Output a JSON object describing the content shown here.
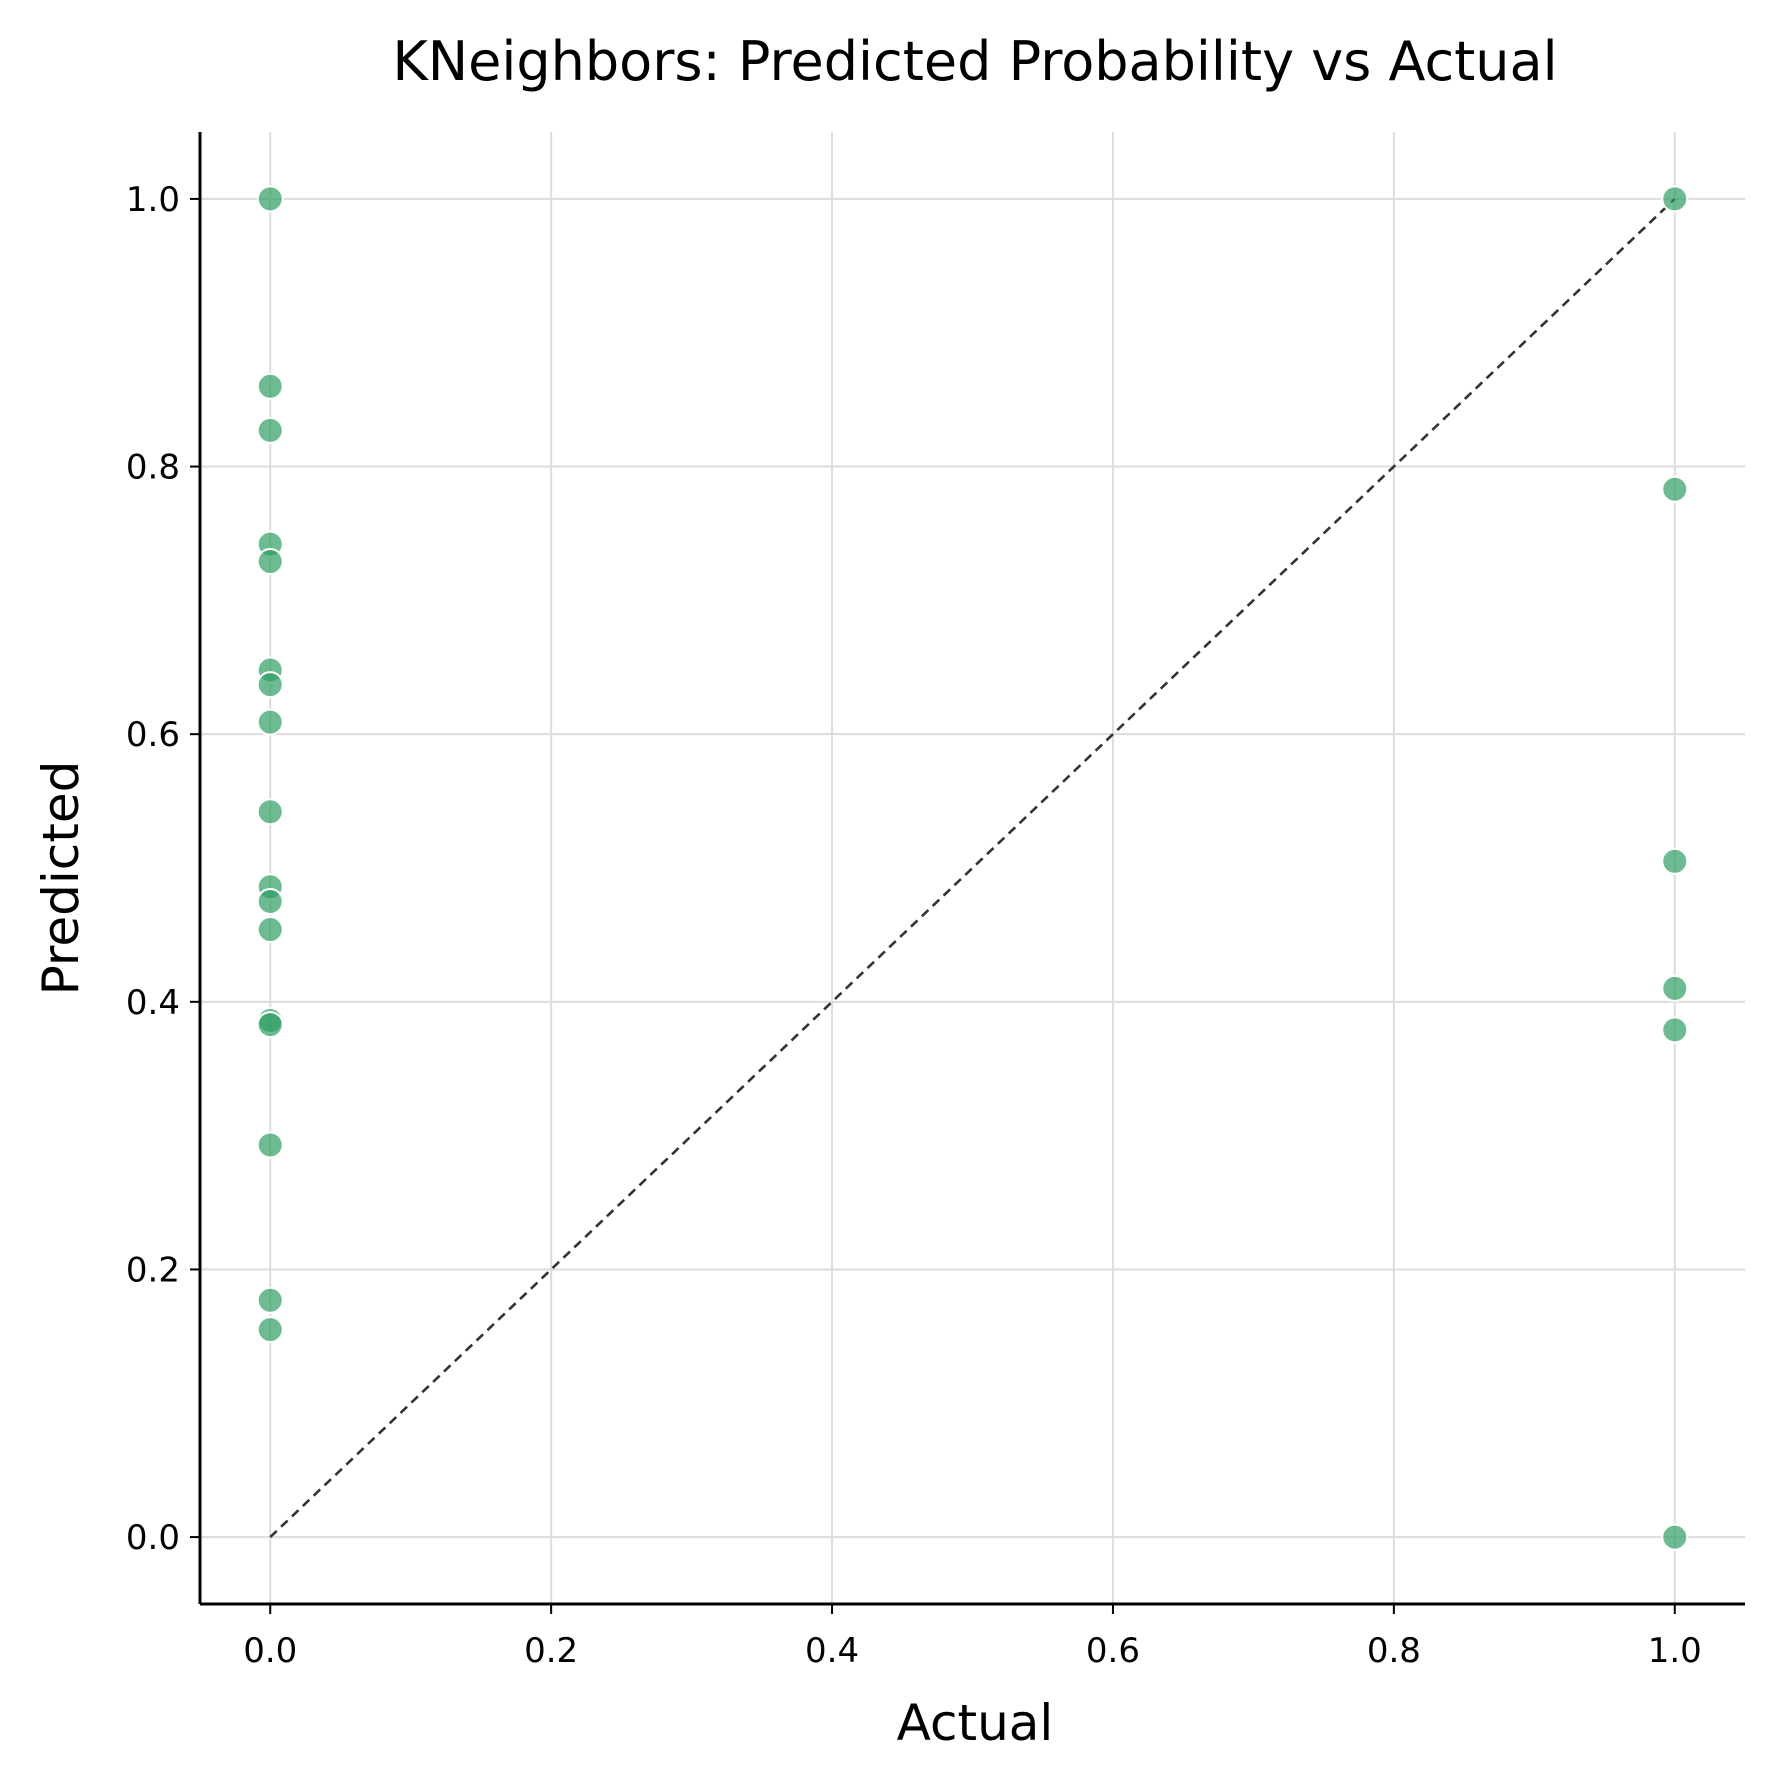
{
  "chart_data": {
    "type": "scatter",
    "title": "KNeighbors: Predicted Probability vs Actual",
    "xlabel": "Actual",
    "ylabel": "Predicted",
    "xlim": [
      -0.05,
      1.05
    ],
    "ylim": [
      -0.05,
      1.05
    ],
    "xticks": [
      "0.0",
      "0.2",
      "0.4",
      "0.6",
      "0.8",
      "1.0"
    ],
    "yticks": [
      "0.0",
      "0.2",
      "0.4",
      "0.6",
      "0.8",
      "1.0"
    ],
    "grid": true,
    "reference_line": {
      "from": [
        0,
        0
      ],
      "to": [
        1,
        1
      ],
      "style": "dashed"
    },
    "marker_color": "#2e9e63",
    "points": [
      {
        "x": 0,
        "y": 1.0
      },
      {
        "x": 0,
        "y": 0.86
      },
      {
        "x": 0,
        "y": 0.827
      },
      {
        "x": 0,
        "y": 0.742
      },
      {
        "x": 0,
        "y": 0.729
      },
      {
        "x": 0,
        "y": 0.648
      },
      {
        "x": 0,
        "y": 0.637
      },
      {
        "x": 0,
        "y": 0.609
      },
      {
        "x": 0,
        "y": 0.542
      },
      {
        "x": 0,
        "y": 0.486
      },
      {
        "x": 0,
        "y": 0.475
      },
      {
        "x": 0,
        "y": 0.454
      },
      {
        "x": 0,
        "y": 0.386
      },
      {
        "x": 0,
        "y": 0.383
      },
      {
        "x": 0,
        "y": 0.293
      },
      {
        "x": 0,
        "y": 0.177
      },
      {
        "x": 0,
        "y": 0.155
      },
      {
        "x": 1,
        "y": 1.0
      },
      {
        "x": 1,
        "y": 0.783
      },
      {
        "x": 1,
        "y": 0.505
      },
      {
        "x": 1,
        "y": 0.41
      },
      {
        "x": 1,
        "y": 0.379
      },
      {
        "x": 1,
        "y": 0.0
      }
    ]
  }
}
